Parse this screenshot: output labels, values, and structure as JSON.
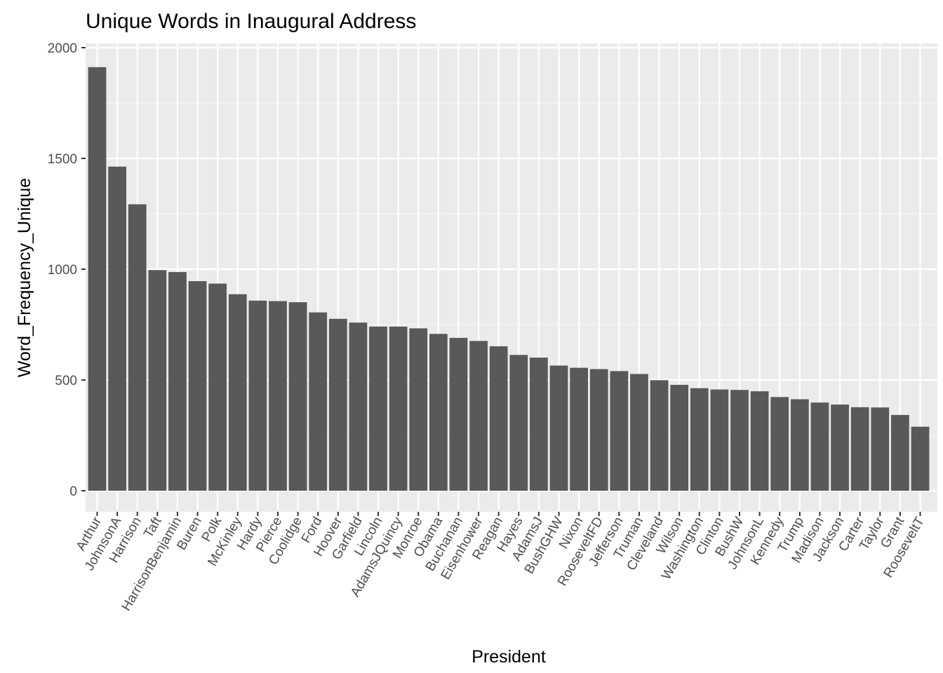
{
  "chart_data": {
    "type": "bar",
    "title": "Unique Words in Inaugural Address",
    "xlabel": "President",
    "ylabel": "Word_Frequency_Unique",
    "ylim": [
      0,
      2000
    ],
    "yticks": [
      0,
      500,
      1000,
      1500,
      2000
    ],
    "grid": true,
    "legend": "none",
    "colors": {
      "bar": "#595959",
      "panel": "#ebebeb",
      "grid_major": "#ffffff",
      "tick_text": "#4d4d4d"
    },
    "categories": [
      "Arthur",
      "JohnsonA",
      "Harrison",
      "Taft",
      "HarrisonBenjamin",
      "Buren",
      "Polk",
      "McKinley",
      "Hardy",
      "Pierce",
      "Coolidge",
      "Ford",
      "Hoover",
      "Garfield",
      "Lincoln",
      "AdamsJQuincy",
      "Monroe",
      "Obama",
      "Buchanan",
      "Eisenhower",
      "Reagan",
      "Hayes",
      "AdamsJ",
      "BushGHW",
      "Nixon",
      "RooseveltFD",
      "Jefferson",
      "Truman",
      "Cleveland",
      "Wilson",
      "Washington",
      "Clinton",
      "BushW",
      "JohnsonL",
      "Kennedy",
      "Trump",
      "Madison",
      "Jackson",
      "Carter",
      "Taylor",
      "Grant",
      "RooseveltT"
    ],
    "values": [
      1912,
      1463,
      1293,
      996,
      987,
      946,
      935,
      887,
      858,
      856,
      851,
      805,
      776,
      759,
      741,
      741,
      733,
      708,
      690,
      676,
      652,
      613,
      601,
      565,
      555,
      549,
      540,
      527,
      499,
      478,
      463,
      457,
      455,
      449,
      423,
      413,
      398,
      389,
      377,
      376,
      342,
      289
    ]
  }
}
